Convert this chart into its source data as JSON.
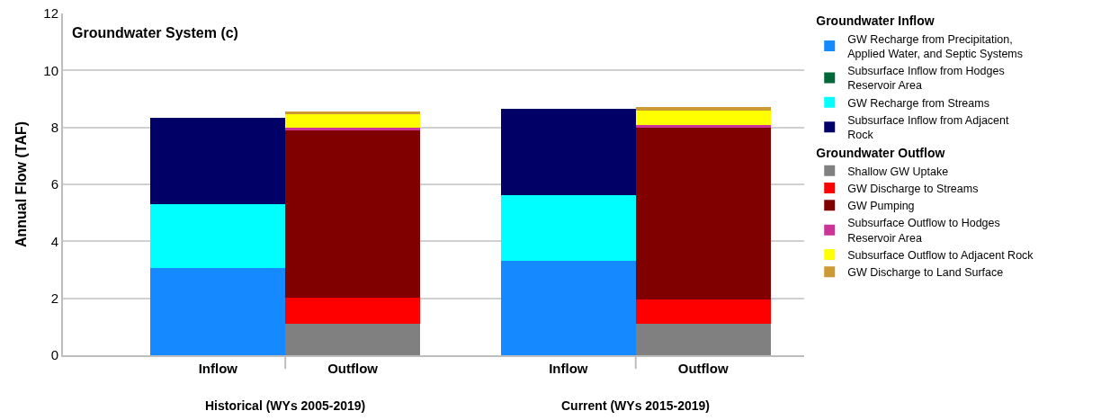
{
  "chart_data": {
    "type": "bar",
    "stacked": true,
    "title": "Groundwater System (c)",
    "ylabel": "Annual Flow (TAF)",
    "categories": [
      "Inflow",
      "Outflow",
      "Inflow",
      "Outflow"
    ],
    "annotations": [
      "Historical (WYs 2005-2019)",
      "Current (WYs 2015-2019)"
    ],
    "legend_title": [
      "Groundwater Inflow",
      "Groundwater Outflow"
    ],
    "series": [
      {
        "name": "GW Recharge from Precipitation, Applied Water, and Septic Systems",
        "color": "#1589ff",
        "values": [
          3.05,
          null,
          3.32,
          null
        ]
      },
      {
        "name": "Subsurface Inflow from Hodges Reservoir Area",
        "color": "#006837",
        "values": [
          0,
          null,
          0,
          null
        ]
      },
      {
        "name": "GW Recharge from Streams",
        "color": "#00ffff",
        "values": [
          2.26,
          null,
          2.3,
          null
        ]
      },
      {
        "name": "Subsurface Inflow from Adjacent Rock",
        "color": "#000066",
        "values": [
          3.03,
          null,
          3.04,
          null
        ]
      },
      {
        "name": "Shallow GW Uptake",
        "color": "#808080",
        "values": [
          null,
          1.12,
          null,
          1.09
        ]
      },
      {
        "name": "GW Discharge to Streams",
        "color": "#ff0000",
        "values": [
          null,
          0.91,
          null,
          0.87
        ]
      },
      {
        "name": "GW Pumping",
        "color": "#800000",
        "values": [
          null,
          5.85,
          null,
          6.02
        ]
      },
      {
        "name": "Subsurface Outflow to Hodges Reservoir Area",
        "color": "#cc3399",
        "values": [
          null,
          0.11,
          null,
          0.12
        ]
      },
      {
        "name": "Subsurface Outflow to Adjacent Rock",
        "color": "#ffff00",
        "values": [
          null,
          0.47,
          null,
          0.5
        ]
      },
      {
        "name": "GW Discharge to Land Surface",
        "color": "#cc9933",
        "values": [
          null,
          0.11,
          null,
          0.11
        ]
      }
    ],
    "ylim": [
      0,
      12
    ],
    "yticks": [
      0,
      2,
      4,
      6,
      8,
      10,
      12
    ],
    "grid": "y",
    "legend": "right"
  }
}
